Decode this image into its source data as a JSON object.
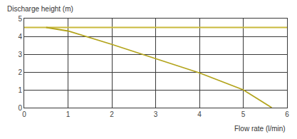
{
  "chart_data": {
    "type": "line",
    "ylabel": "Discharge height (m)",
    "xlabel": "Flow rate (l/min)",
    "series": [
      {
        "color": "#c9b93c",
        "x": [
          0,
          6
        ],
        "values": [
          4.5,
          4.5
        ]
      },
      {
        "color": "#b3a41c",
        "x": [
          0.5,
          1,
          2,
          3,
          4,
          5,
          5.65
        ],
        "values": [
          4.5,
          4.3,
          3.55,
          2.75,
          1.95,
          1.0,
          0
        ]
      }
    ],
    "xlim": [
      0,
      6
    ],
    "xticks": [
      0,
      1,
      2,
      3,
      4,
      5,
      6
    ],
    "ylim": [
      0,
      5
    ],
    "yticks": [
      0,
      1,
      2,
      3,
      4,
      5
    ],
    "grid": true
  }
}
